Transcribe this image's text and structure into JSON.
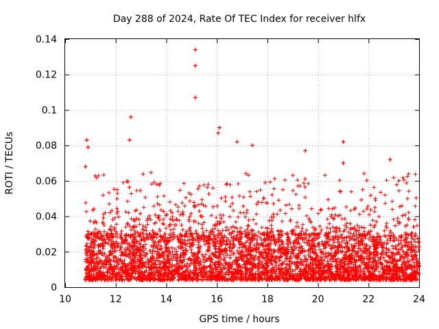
{
  "chart_data": {
    "type": "scatter",
    "title": "Day 288 of 2024, Rate Of TEC Index for receiver hlfx",
    "xlabel": "GPS time / hours",
    "ylabel": "ROTI / TECUs",
    "xlim": [
      10,
      24
    ],
    "ylim": [
      0,
      0.14
    ],
    "xticks": [
      "10",
      "12",
      "14",
      "16",
      "18",
      "20",
      "22",
      "24"
    ],
    "yticks": [
      "0",
      "0.02",
      "0.04",
      "0.06",
      "0.08",
      "0.1",
      "0.12",
      "0.14"
    ],
    "grid": true,
    "marker": "+",
    "color": "#ff0000",
    "series": [
      {
        "name": "ROTI",
        "data_start_hour": 10.8,
        "data_end_hour": 24.0,
        "baseline_range": [
          0.004,
          0.03
        ],
        "notable_points": [
          {
            "x": 15.15,
            "y": 0.134
          },
          {
            "x": 15.15,
            "y": 0.125
          },
          {
            "x": 15.15,
            "y": 0.107
          },
          {
            "x": 12.6,
            "y": 0.096
          },
          {
            "x": 16.1,
            "y": 0.09
          },
          {
            "x": 16.05,
            "y": 0.087
          },
          {
            "x": 10.85,
            "y": 0.083
          },
          {
            "x": 12.55,
            "y": 0.083
          },
          {
            "x": 16.8,
            "y": 0.082
          },
          {
            "x": 21.0,
            "y": 0.082
          },
          {
            "x": 17.4,
            "y": 0.08
          },
          {
            "x": 10.9,
            "y": 0.079
          },
          {
            "x": 19.5,
            "y": 0.077
          },
          {
            "x": 22.85,
            "y": 0.072
          },
          {
            "x": 21.0,
            "y": 0.07
          },
          {
            "x": 10.8,
            "y": 0.068
          },
          {
            "x": 23.2,
            "y": 0.06
          },
          {
            "x": 20.9,
            "y": 0.054
          }
        ]
      }
    ]
  }
}
